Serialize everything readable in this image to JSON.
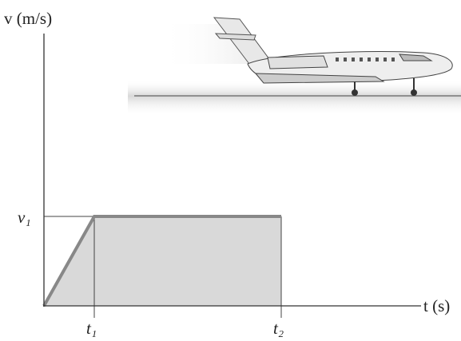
{
  "axes": {
    "y_label": "v (m/s)",
    "x_label": "t (s)"
  },
  "ticks": {
    "v1": "v₁",
    "t1": "t₁",
    "t2": "t₂"
  }
}
